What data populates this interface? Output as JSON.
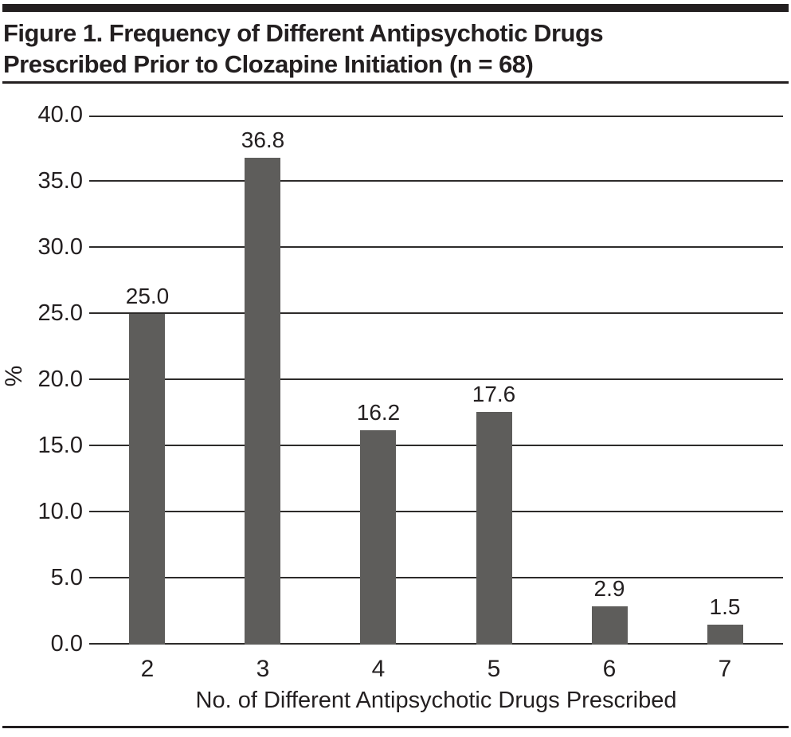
{
  "figure": {
    "title": "Figure 1. Frequency of Different Antipsychotic Drugs Prescribed Prior to Clozapine Initiation (n = 68)"
  },
  "chart_data": {
    "type": "bar",
    "title": "Figure 1. Frequency of Different Antipsychotic Drugs Prescribed Prior to Clozapine Initiation (n = 68)",
    "categories": [
      "2",
      "3",
      "4",
      "5",
      "6",
      "7"
    ],
    "values": [
      25.0,
      36.8,
      16.2,
      17.6,
      2.9,
      1.5
    ],
    "value_labels": [
      "25.0",
      "36.8",
      "16.2",
      "17.6",
      "2.9",
      "1.5"
    ],
    "xlabel": "No. of Different Antipsychotic Drugs Prescribed",
    "ylabel": "%",
    "ylim": [
      0,
      40
    ],
    "ytick_step": 5,
    "ytick_labels": [
      "0.0",
      "5.0",
      "10.0",
      "15.0",
      "20.0",
      "25.0",
      "30.0",
      "35.0",
      "40.0"
    ],
    "grid": "horizontal",
    "legend": "none",
    "colors": {
      "bar": "#5e5d5b",
      "line": "#2d2b2a",
      "text": "#231f20",
      "background": "#ffffff"
    }
  }
}
